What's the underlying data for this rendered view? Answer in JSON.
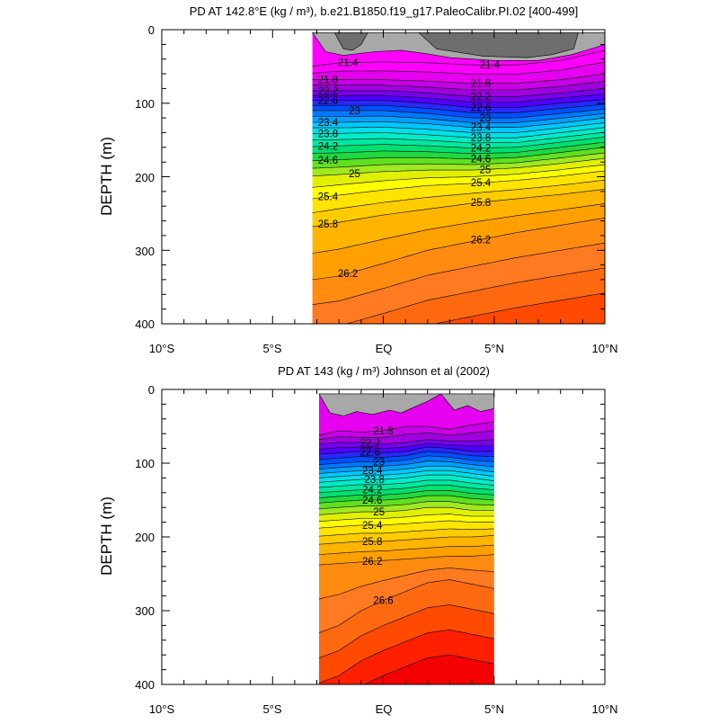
{
  "figure": {
    "colors": {
      "land_dark": "#6e6e6e",
      "land_light": "#a8a8a8",
      "contour_line": "#000000",
      "label_halo": "#ffffff"
    },
    "palette": [
      "#ff00ff",
      "#e600f0",
      "#c800e6",
      "#a000e0",
      "#7800ee",
      "#5000ff",
      "#2828ff",
      "#0050ff",
      "#0078ff",
      "#00a0ff",
      "#00c8ff",
      "#00e0e8",
      "#00ecc8",
      "#00e8a0",
      "#00e070",
      "#20d840",
      "#60e020",
      "#a0e820",
      "#e0f000",
      "#ffff00",
      "#ffe400",
      "#ffcc00",
      "#ffb400",
      "#ffa000",
      "#ff8c10",
      "#ff7a20",
      "#ff6a10",
      "#ff4a00",
      "#ff2000",
      "#f40000",
      "#e40000",
      "#d40000",
      "#c40000",
      "#b80000"
    ],
    "shared": {
      "xlabels": [
        "10°S",
        "5°S",
        "EQ",
        "5°N",
        "10°N"
      ],
      "ylabels": [
        "0",
        "100",
        "200",
        "300",
        "400"
      ],
      "ylabel": "DEPTH (m)"
    }
  },
  "chart_data": [
    {
      "type": "contour",
      "id": "model",
      "title": "PD AT 142.8°E (kg / m³), b.e21.B1850.f19_g17.PaleoCalibr.PI.02 [400-499]",
      "xlabel": "",
      "ylabel": "DEPTH (m)",
      "x_range": [
        -10,
        10
      ],
      "y_range": [
        0,
        400
      ],
      "y_reversed": true,
      "data_x_range": [
        -3.2,
        10
      ],
      "data_y_range": [
        4,
        400
      ],
      "contour_interval": 0.2,
      "x": [
        -3.2,
        -2,
        0,
        2,
        4,
        6,
        8,
        10
      ],
      "isopycnals": [
        {
          "level": 21.4,
          "depth": [
            50,
            45,
            44,
            45,
            48,
            48,
            42,
            28
          ]
        },
        {
          "level": 21.8,
          "depth": [
            68,
            68,
            68,
            70,
            73,
            73,
            68,
            60
          ]
        },
        {
          "level": 22.2,
          "depth": [
            83,
            83,
            83,
            86,
            91,
            91,
            86,
            80
          ]
        },
        {
          "level": 22.6,
          "depth": [
            96,
            96,
            96,
            100,
            106,
            106,
            100,
            95
          ]
        },
        {
          "level": 23.0,
          "depth": [
            110,
            110,
            110,
            114,
            120,
            120,
            114,
            108
          ]
        },
        {
          "level": 23.4,
          "depth": [
            126,
            126,
            125,
            128,
            133,
            133,
            127,
            120
          ]
        },
        {
          "level": 23.8,
          "depth": [
            141,
            141,
            140,
            143,
            147,
            147,
            140,
            133
          ]
        },
        {
          "level": 24.2,
          "depth": [
            159,
            158,
            156,
            158,
            161,
            160,
            153,
            146
          ]
        },
        {
          "level": 24.6,
          "depth": [
            178,
            177,
            174,
            174,
            176,
            174,
            167,
            160
          ]
        },
        {
          "level": 25.0,
          "depth": [
            199,
            197,
            193,
            191,
            191,
            188,
            182,
            175
          ]
        },
        {
          "level": 25.4,
          "depth": [
            230,
            225,
            218,
            212,
            209,
            205,
            199,
            192
          ]
        },
        {
          "level": 25.8,
          "depth": [
            268,
            262,
            252,
            244,
            236,
            230,
            224,
            217
          ]
        },
        {
          "level": 26.2,
          "depth": [
            340,
            335,
            318,
            300,
            288,
            276,
            266,
            256
          ]
        }
      ],
      "land": [
        {
          "shade": "dark",
          "x": [
            -2.2,
            -1.8,
            -1.4,
            -1.0,
            -0.7
          ],
          "depth": [
            4,
            26,
            28,
            20,
            4
          ]
        },
        {
          "shade": "dark",
          "x": [
            1.6,
            2.4,
            4.5,
            6.5,
            7.6,
            8.6,
            8.8
          ],
          "depth": [
            4,
            26,
            36,
            38,
            34,
            26,
            4
          ]
        },
        {
          "shade": "light",
          "x": [
            -3.2,
            -2.6,
            -1.8,
            -0.4,
            0.8,
            1.8,
            3.0,
            5.0,
            7.0,
            8.5,
            9.6,
            10.0
          ],
          "depth": [
            4,
            30,
            35,
            30,
            28,
            32,
            38,
            42,
            42,
            34,
            24,
            20
          ]
        }
      ],
      "labels": [
        {
          "text": "21.4",
          "level": 21.4,
          "x": -1.6
        },
        {
          "text": "21.4",
          "level": 21.4,
          "x": 4.8
        },
        {
          "text": "21.8",
          "level": 21.8,
          "x": -2.5
        },
        {
          "text": "21.8",
          "level": 21.8,
          "x": 4.4
        },
        {
          "text": "22.2",
          "level": 22.2,
          "x": -2.5
        },
        {
          "text": "22.2",
          "level": 22.2,
          "x": 4.4
        },
        {
          "text": "22.6",
          "level": 22.6,
          "x": -2.5
        },
        {
          "text": "22.6",
          "level": 22.6,
          "x": 4.4
        },
        {
          "text": "23",
          "level": 23.0,
          "x": -1.3
        },
        {
          "text": "23",
          "level": 23.0,
          "x": 4.6
        },
        {
          "text": "23.4",
          "level": 23.4,
          "x": -2.5
        },
        {
          "text": "23.4",
          "level": 23.4,
          "x": 4.4
        },
        {
          "text": "23.8",
          "level": 23.8,
          "x": -2.5
        },
        {
          "text": "23.8",
          "level": 23.8,
          "x": 4.4
        },
        {
          "text": "24.2",
          "level": 24.2,
          "x": -2.5
        },
        {
          "text": "24.2",
          "level": 24.2,
          "x": 4.4
        },
        {
          "text": "24.6",
          "level": 24.6,
          "x": -2.5
        },
        {
          "text": "24.6",
          "level": 24.6,
          "x": 4.4
        },
        {
          "text": "25",
          "level": 25.0,
          "x": -1.3
        },
        {
          "text": "25",
          "level": 25.0,
          "x": 4.6
        },
        {
          "text": "25.4",
          "level": 25.4,
          "x": -2.5
        },
        {
          "text": "25.4",
          "level": 25.4,
          "x": 4.4
        },
        {
          "text": "25.8",
          "level": 25.8,
          "x": -2.5
        },
        {
          "text": "25.8",
          "level": 25.8,
          "x": 4.4
        },
        {
          "text": "26.2",
          "level": 26.2,
          "x": -1.6
        },
        {
          "text": "26.2",
          "level": 26.2,
          "x": 4.4
        }
      ]
    },
    {
      "type": "contour",
      "id": "obs",
      "title": "PD AT 143 (kg / m³) Johnson et al (2002)",
      "xlabel": "",
      "ylabel": "DEPTH (m)",
      "x_range": [
        -10,
        10
      ],
      "y_range": [
        0,
        400
      ],
      "y_reversed": true,
      "data_x_range": [
        -2.9,
        5
      ],
      "data_y_range": [
        6,
        400
      ],
      "contour_interval": 0.2,
      "x": [
        -2.9,
        -2,
        -1,
        0,
        1,
        2,
        3,
        4,
        5
      ],
      "isopycnals": [
        {
          "level": 21.8,
          "depth": [
            62,
            56,
            58,
            56,
            50,
            50,
            54,
            48,
            44
          ]
        },
        {
          "level": 22.2,
          "depth": [
            74,
            72,
            72,
            74,
            72,
            68,
            70,
            70,
            68
          ]
        },
        {
          "level": 22.6,
          "depth": [
            88,
            86,
            84,
            86,
            84,
            78,
            80,
            84,
            84
          ]
        },
        {
          "level": 23.0,
          "depth": [
            102,
            100,
            98,
            98,
            96,
            90,
            92,
            96,
            98
          ]
        },
        {
          "level": 23.4,
          "depth": [
            114,
            112,
            110,
            110,
            108,
            104,
            104,
            108,
            112
          ]
        },
        {
          "level": 23.8,
          "depth": [
            126,
            124,
            122,
            122,
            120,
            116,
            116,
            120,
            124
          ]
        },
        {
          "level": 24.2,
          "depth": [
            140,
            138,
            136,
            136,
            134,
            130,
            130,
            134,
            136
          ]
        },
        {
          "level": 24.6,
          "depth": [
            154,
            152,
            150,
            150,
            148,
            144,
            144,
            148,
            150
          ]
        },
        {
          "level": 25.0,
          "depth": [
            170,
            168,
            166,
            166,
            164,
            160,
            160,
            164,
            164
          ]
        },
        {
          "level": 25.4,
          "depth": [
            188,
            186,
            184,
            184,
            182,
            180,
            178,
            180,
            180
          ]
        },
        {
          "level": 25.8,
          "depth": [
            210,
            208,
            206,
            206,
            204,
            202,
            200,
            200,
            198
          ]
        },
        {
          "level": 26.2,
          "depth": [
            238,
            236,
            234,
            232,
            230,
            228,
            226,
            226,
            224
          ]
        },
        {
          "level": 26.6,
          "depth": [
            330,
            320,
            300,
            286,
            274,
            262,
            258,
            264,
            270
          ]
        }
      ],
      "land": [
        {
          "shade": "light",
          "x": [
            -2.9,
            -2.4,
            -1.8,
            -1.2,
            -0.5,
            0.3,
            0.8,
            1.4,
            2.0,
            2.6,
            3.2,
            3.8,
            4.4,
            5.0
          ],
          "depth": [
            6,
            32,
            36,
            30,
            34,
            28,
            32,
            24,
            16,
            6,
            28,
            22,
            30,
            26
          ]
        }
      ],
      "labels": [
        {
          "text": "21.8",
          "level": 21.8,
          "x": 0.0
        },
        {
          "text": "22.2",
          "level": 22.2,
          "x": -0.6
        },
        {
          "text": "22.6",
          "level": 22.6,
          "x": -0.6
        },
        {
          "text": "23",
          "level": 23.0,
          "x": -0.2
        },
        {
          "text": "23.4",
          "level": 23.4,
          "x": -0.5
        },
        {
          "text": "23.8",
          "level": 23.8,
          "x": -0.4
        },
        {
          "text": "24.2",
          "level": 24.2,
          "x": -0.5
        },
        {
          "text": "24.6",
          "level": 24.6,
          "x": -0.5
        },
        {
          "text": "25",
          "level": 25.0,
          "x": -0.2
        },
        {
          "text": "25.4",
          "level": 25.4,
          "x": -0.5
        },
        {
          "text": "25.8",
          "level": 25.8,
          "x": -0.5
        },
        {
          "text": "26.2",
          "level": 26.2,
          "x": -0.5
        },
        {
          "text": "26.6",
          "level": 26.6,
          "x": 0.0
        }
      ]
    }
  ]
}
